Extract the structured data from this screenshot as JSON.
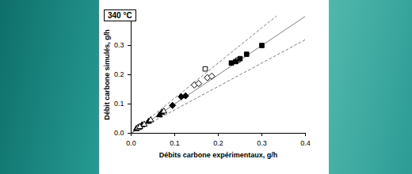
{
  "chart_data": {
    "type": "scatter",
    "title": "340 °C",
    "x_label": "Débits carbone expérimentaux, g/h",
    "y_label": "Débit carbone simulés, g/h",
    "xlim": [
      0,
      0.4
    ],
    "ylim": [
      0,
      0.4
    ],
    "xticks": [
      {
        "value": 0,
        "label": "0.0"
      },
      {
        "value": 0.1,
        "label": "0.1"
      },
      {
        "value": 0.2,
        "label": "0.2"
      },
      {
        "value": 0.3,
        "label": "0.3"
      },
      {
        "value": 0.4,
        "label": "0.4"
      }
    ],
    "yticks": [
      {
        "value": 0,
        "label": "0.0"
      },
      {
        "value": 0.1,
        "label": "0.1"
      },
      {
        "value": 0.2,
        "label": "0.2"
      },
      {
        "value": 0.3,
        "label": "0.3"
      },
      {
        "value": 0.4,
        "label": "0.4"
      }
    ],
    "grid": false,
    "series": [
      {
        "type": "line",
        "line_style": "solid",
        "color": "#7f7f7f",
        "x": [
          0,
          0.4
        ],
        "values": [
          0,
          0.4
        ]
      },
      {
        "type": "line",
        "line_style": "dashed",
        "color": "#7f7f7f",
        "x": [
          0,
          0.333
        ],
        "values": [
          0,
          0.4
        ]
      },
      {
        "type": "line",
        "line_style": "dashed",
        "color": "#7f7f7f",
        "x": [
          0,
          0.4
        ],
        "values": [
          0,
          0.32
        ]
      },
      {
        "type": "scatter",
        "marker": "triangle",
        "color": "#000000",
        "x": [
          0.012,
          0.018,
          0.025,
          0.04,
          0.065,
          0.07
        ],
        "values": [
          0.015,
          0.02,
          0.028,
          0.04,
          0.062,
          0.07
        ]
      },
      {
        "type": "scatter",
        "marker": "triangle-open",
        "color": "#000000",
        "x": [
          0.015,
          0.02,
          0.03,
          0.045,
          0.075
        ],
        "values": [
          0.018,
          0.022,
          0.03,
          0.045,
          0.075
        ]
      },
      {
        "type": "scatter",
        "marker": "diamond",
        "color": "#000000",
        "x": [
          0.095,
          0.115,
          0.125
        ],
        "values": [
          0.095,
          0.125,
          0.128
        ]
      },
      {
        "type": "scatter",
        "marker": "diamond-open",
        "color": "#000000",
        "x": [
          0.145,
          0.155,
          0.175,
          0.185
        ],
        "values": [
          0.165,
          0.17,
          0.19,
          0.195
        ]
      },
      {
        "type": "scatter",
        "marker": "square-open",
        "color": "#000000",
        "x": [
          0.17,
          0.245
        ],
        "values": [
          0.22,
          0.25
        ]
      },
      {
        "type": "scatter",
        "marker": "square",
        "color": "#000000",
        "x": [
          0.23,
          0.24,
          0.25,
          0.265,
          0.3
        ],
        "values": [
          0.24,
          0.245,
          0.255,
          0.27,
          0.3
        ]
      }
    ]
  }
}
